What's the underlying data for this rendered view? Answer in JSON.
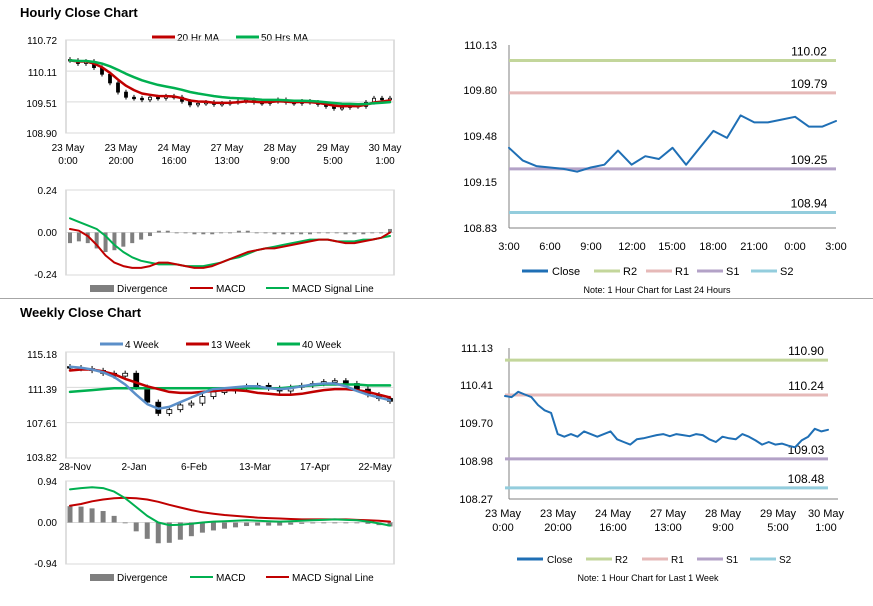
{
  "sections": {
    "hourly_title": "Hourly Close Chart",
    "weekly_title": "Weekly Close Chart"
  },
  "colors": {
    "ma20": "#c00000",
    "ma50": "#00b050",
    "w4": "#5b8fc9",
    "w13": "#c00000",
    "w40": "#00b050",
    "close": "#1f6fb5",
    "r2": "#c3d69b",
    "r1": "#e6b9b8",
    "s1": "#b3a2c7",
    "s2": "#93cddd",
    "divergence": "#7f7f7f",
    "grid": "#d9d9d9"
  },
  "chart_data": [
    {
      "id": "hourly_price",
      "type": "candlestick",
      "legend": [
        "20 Hr MA",
        "50 Hrs MA"
      ],
      "y_ticks": [
        "110.72",
        "110.11",
        "109.51",
        "108.90"
      ],
      "ylim": [
        108.9,
        110.72
      ],
      "x_ticks": [
        [
          "23 May",
          "0:00"
        ],
        [
          "23 May",
          "20:00"
        ],
        [
          "24 May",
          "16:00"
        ],
        [
          "27 May",
          "13:00"
        ],
        [
          "28 May",
          "9:00"
        ],
        [
          "29 May",
          "5:00"
        ],
        [
          "30 May",
          "1:00"
        ]
      ],
      "close": [
        110.32,
        110.26,
        110.3,
        110.18,
        110.05,
        109.88,
        109.7,
        109.6,
        109.58,
        109.55,
        109.6,
        109.58,
        109.62,
        109.6,
        109.52,
        109.45,
        109.48,
        109.5,
        109.46,
        109.48,
        109.5,
        109.52,
        109.55,
        109.5,
        109.48,
        109.52,
        109.55,
        109.5,
        109.48,
        109.52,
        109.5,
        109.46,
        109.42,
        109.38,
        109.4,
        109.44,
        109.42,
        109.5,
        109.58,
        109.55,
        109.58
      ]
    },
    {
      "id": "hourly_macd",
      "type": "bar+line",
      "legend": [
        "Divergence",
        "MACD",
        "MACD Signal Line"
      ],
      "y_ticks": [
        "0.24",
        "0.00",
        "-0.24"
      ],
      "ylim": [
        -0.24,
        0.24
      ],
      "macd": [
        0.02,
        0.01,
        -0.02,
        -0.07,
        -0.13,
        -0.17,
        -0.19,
        -0.2,
        -0.2,
        -0.19,
        -0.17,
        -0.17,
        -0.18,
        -0.19,
        -0.2,
        -0.2,
        -0.19,
        -0.17,
        -0.15,
        -0.13,
        -0.11,
        -0.1,
        -0.09,
        -0.09,
        -0.08,
        -0.07,
        -0.06,
        -0.05,
        -0.04,
        -0.04,
        -0.05,
        -0.06,
        -0.06,
        -0.05,
        -0.04,
        -0.03,
        0.0
      ],
      "signal": [
        0.08,
        0.06,
        0.04,
        0.02,
        -0.02,
        -0.07,
        -0.11,
        -0.14,
        -0.16,
        -0.17,
        -0.18,
        -0.18,
        -0.18,
        -0.19,
        -0.19,
        -0.19,
        -0.18,
        -0.17,
        -0.15,
        -0.14,
        -0.12,
        -0.1,
        -0.09,
        -0.08,
        -0.07,
        -0.06,
        -0.05,
        -0.04,
        -0.04,
        -0.04,
        -0.05,
        -0.05,
        -0.05,
        -0.04,
        -0.04,
        -0.03,
        -0.02
      ]
    },
    {
      "id": "hourly_24h",
      "type": "line",
      "y_ticks": [
        "110.13",
        "109.80",
        "109.48",
        "109.15",
        "108.83"
      ],
      "ylim": [
        108.83,
        110.13
      ],
      "x_ticks": [
        "3:00",
        "6:00",
        "9:00",
        "12:00",
        "15:00",
        "18:00",
        "21:00",
        "0:00",
        "3:00"
      ],
      "legend": [
        "Close",
        "R2",
        "R1",
        "S1",
        "S2"
      ],
      "levels": [
        {
          "name": "R2",
          "value": 110.02,
          "label": "110.02"
        },
        {
          "name": "R1",
          "value": 109.79,
          "label": "109.79"
        },
        {
          "name": "S1",
          "value": 109.25,
          "label": "109.25"
        },
        {
          "name": "S2",
          "value": 108.94,
          "label": "108.94"
        }
      ],
      "close": [
        109.4,
        109.31,
        109.27,
        109.26,
        109.25,
        109.23,
        109.26,
        109.28,
        109.38,
        109.28,
        109.34,
        109.32,
        109.4,
        109.28,
        109.4,
        109.52,
        109.47,
        109.63,
        109.58,
        109.58,
        109.6,
        109.62,
        109.55,
        109.55,
        109.59
      ],
      "note": "Note: 1 Hour Chart for Last 24 Hours"
    },
    {
      "id": "weekly_price",
      "type": "candlestick",
      "legend": [
        "4 Week",
        "13 Week",
        "40 Week"
      ],
      "y_ticks": [
        "115.18",
        "111.39",
        "107.61",
        "103.82"
      ],
      "ylim": [
        103.82,
        115.18
      ],
      "x_ticks": [
        "28-Nov",
        "2-Jan",
        "6-Feb",
        "13-Mar",
        "17-Apr",
        "22-May"
      ],
      "close": [
        113.5,
        113.4,
        113.2,
        112.9,
        112.6,
        112.9,
        111.4,
        109.8,
        108.6,
        109.0,
        109.5,
        109.7,
        110.4,
        110.9,
        111.0,
        111.2,
        111.5,
        111.6,
        111.3,
        111.0,
        111.4,
        111.6,
        111.8,
        112.0,
        112.1,
        111.8,
        111.2,
        110.6,
        110.2,
        109.9
      ],
      "ma4": [
        113.6,
        113.5,
        113.3,
        113.0,
        112.5,
        111.7,
        110.6,
        109.6,
        109.1,
        109.3,
        109.8,
        110.3,
        110.8,
        111.2,
        111.3,
        111.4,
        111.5,
        111.5,
        111.3,
        111.2,
        111.3,
        111.5,
        111.7,
        111.8,
        111.8,
        111.5,
        111.0,
        110.6,
        110.3,
        110.0
      ],
      "ma13": [
        113.2,
        113.3,
        113.3,
        113.1,
        112.8,
        112.3,
        111.9,
        111.5,
        111.2,
        110.9,
        110.8,
        110.8,
        110.9,
        111.0,
        111.1,
        111.1,
        111.0,
        110.8,
        110.7,
        110.6,
        110.6,
        110.7,
        110.9,
        111.1,
        111.2,
        111.2,
        111.1,
        110.9,
        110.6,
        110.3
      ],
      "ma40": [
        110.9,
        111.0,
        111.1,
        111.2,
        111.3,
        111.3,
        111.3,
        111.3,
        111.3,
        111.3,
        111.3,
        111.3,
        111.3,
        111.3,
        111.3,
        111.3,
        111.3,
        111.3,
        111.3,
        111.3,
        111.4,
        111.5,
        111.6,
        111.7,
        111.7,
        111.7,
        111.7,
        111.6,
        111.6,
        111.6
      ]
    },
    {
      "id": "weekly_macd",
      "type": "bar+line",
      "legend": [
        "Divergence",
        "MACD",
        "MACD Signal Line"
      ],
      "y_ticks": [
        "0.94",
        "0.00",
        "-0.94"
      ],
      "ylim": [
        -0.94,
        0.94
      ],
      "macd": [
        0.75,
        0.78,
        0.8,
        0.78,
        0.7,
        0.55,
        0.35,
        0.15,
        0.0,
        -0.06,
        -0.05,
        -0.03,
        0.0,
        0.02,
        0.03,
        0.04,
        0.05,
        0.04,
        0.03,
        0.02,
        0.03,
        0.04,
        0.05,
        0.06,
        0.07,
        0.06,
        0.05,
        0.02,
        -0.02,
        -0.07
      ],
      "signal": [
        0.38,
        0.42,
        0.48,
        0.52,
        0.55,
        0.56,
        0.55,
        0.52,
        0.47,
        0.4,
        0.34,
        0.28,
        0.23,
        0.2,
        0.17,
        0.15,
        0.13,
        0.11,
        0.1,
        0.09,
        0.08,
        0.07,
        0.07,
        0.07,
        0.07,
        0.07,
        0.06,
        0.05,
        0.04,
        0.02
      ]
    },
    {
      "id": "weekly_1w",
      "type": "line",
      "y_ticks": [
        "111.13",
        "110.41",
        "109.70",
        "108.98",
        "108.27"
      ],
      "ylim": [
        108.27,
        111.13
      ],
      "x_ticks": [
        [
          "23 May",
          "0:00"
        ],
        [
          "23 May",
          "20:00"
        ],
        [
          "24 May",
          "16:00"
        ],
        [
          "27 May",
          "13:00"
        ],
        [
          "28 May",
          "9:00"
        ],
        [
          "29 May",
          "5:00"
        ],
        [
          "30 May",
          "1:00"
        ]
      ],
      "legend": [
        "Close",
        "R2",
        "R1",
        "S1",
        "S2"
      ],
      "levels": [
        {
          "name": "R2",
          "value": 110.9,
          "label": "110.90"
        },
        {
          "name": "R1",
          "value": 110.24,
          "label": "110.24"
        },
        {
          "name": "S1",
          "value": 109.03,
          "label": "109.03"
        },
        {
          "name": "S2",
          "value": 108.48,
          "label": "108.48"
        }
      ],
      "close": [
        110.22,
        110.2,
        110.3,
        110.25,
        110.2,
        110.05,
        109.95,
        109.9,
        109.5,
        109.45,
        109.5,
        109.45,
        109.55,
        109.5,
        109.45,
        109.5,
        109.55,
        109.4,
        109.35,
        109.3,
        109.4,
        109.42,
        109.45,
        109.48,
        109.5,
        109.46,
        109.5,
        109.48,
        109.46,
        109.5,
        109.48,
        109.4,
        109.35,
        109.45,
        109.42,
        109.4,
        109.5,
        109.45,
        109.38,
        109.3,
        109.35,
        109.3,
        109.32,
        109.28,
        109.25,
        109.38,
        109.45,
        109.6,
        109.55,
        109.58
      ],
      "note": "Note: 1 Hour Chart for Last 1 Week"
    }
  ]
}
